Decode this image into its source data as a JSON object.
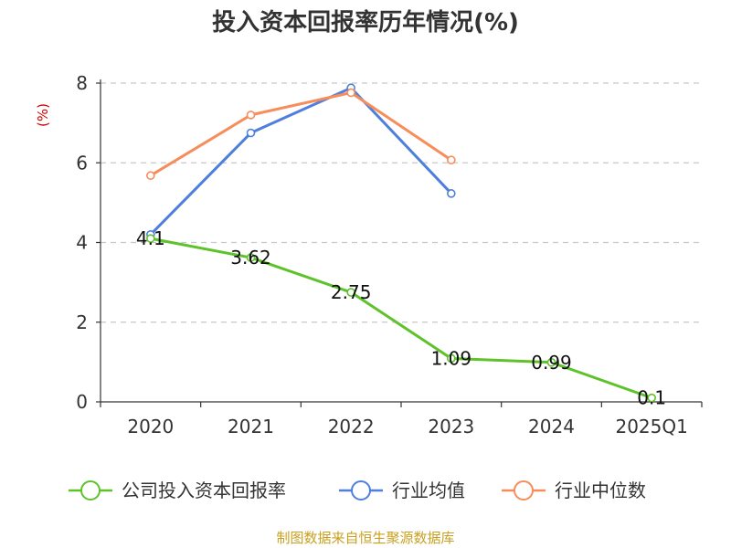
{
  "chart_data": {
    "type": "line",
    "title": "投入资本回报率历年情况(%)",
    "ylabel": "(%)",
    "xlabel": "",
    "categories": [
      "2020",
      "2021",
      "2022",
      "2023",
      "2024",
      "2025Q1"
    ],
    "ylim": [
      0,
      8
    ],
    "yticks": [
      "0",
      "2",
      "4",
      "6",
      "8"
    ],
    "grid": true,
    "legend_position": "bottom",
    "series": [
      {
        "name": "公司投入资本回报率",
        "color": "#5ec22a",
        "values": [
          4.1,
          3.62,
          2.75,
          1.09,
          0.99,
          0.1
        ],
        "labels": [
          "4.1",
          "3.62",
          "2.75",
          "1.09",
          "0.99",
          "0.1"
        ]
      },
      {
        "name": "行业均值",
        "color": "#4f7fdc",
        "values": [
          4.2,
          6.75,
          7.88,
          5.23,
          null,
          null
        ]
      },
      {
        "name": "行业中位数",
        "color": "#f68d5a",
        "values": [
          5.68,
          7.2,
          7.76,
          6.07,
          null,
          null
        ]
      }
    ]
  },
  "colors": {
    "unit": "#d40000",
    "source": "#c8a020",
    "axis": "#333333",
    "grid": "#c8c8c8"
  },
  "source": "制图数据来自恒生聚源数据库"
}
